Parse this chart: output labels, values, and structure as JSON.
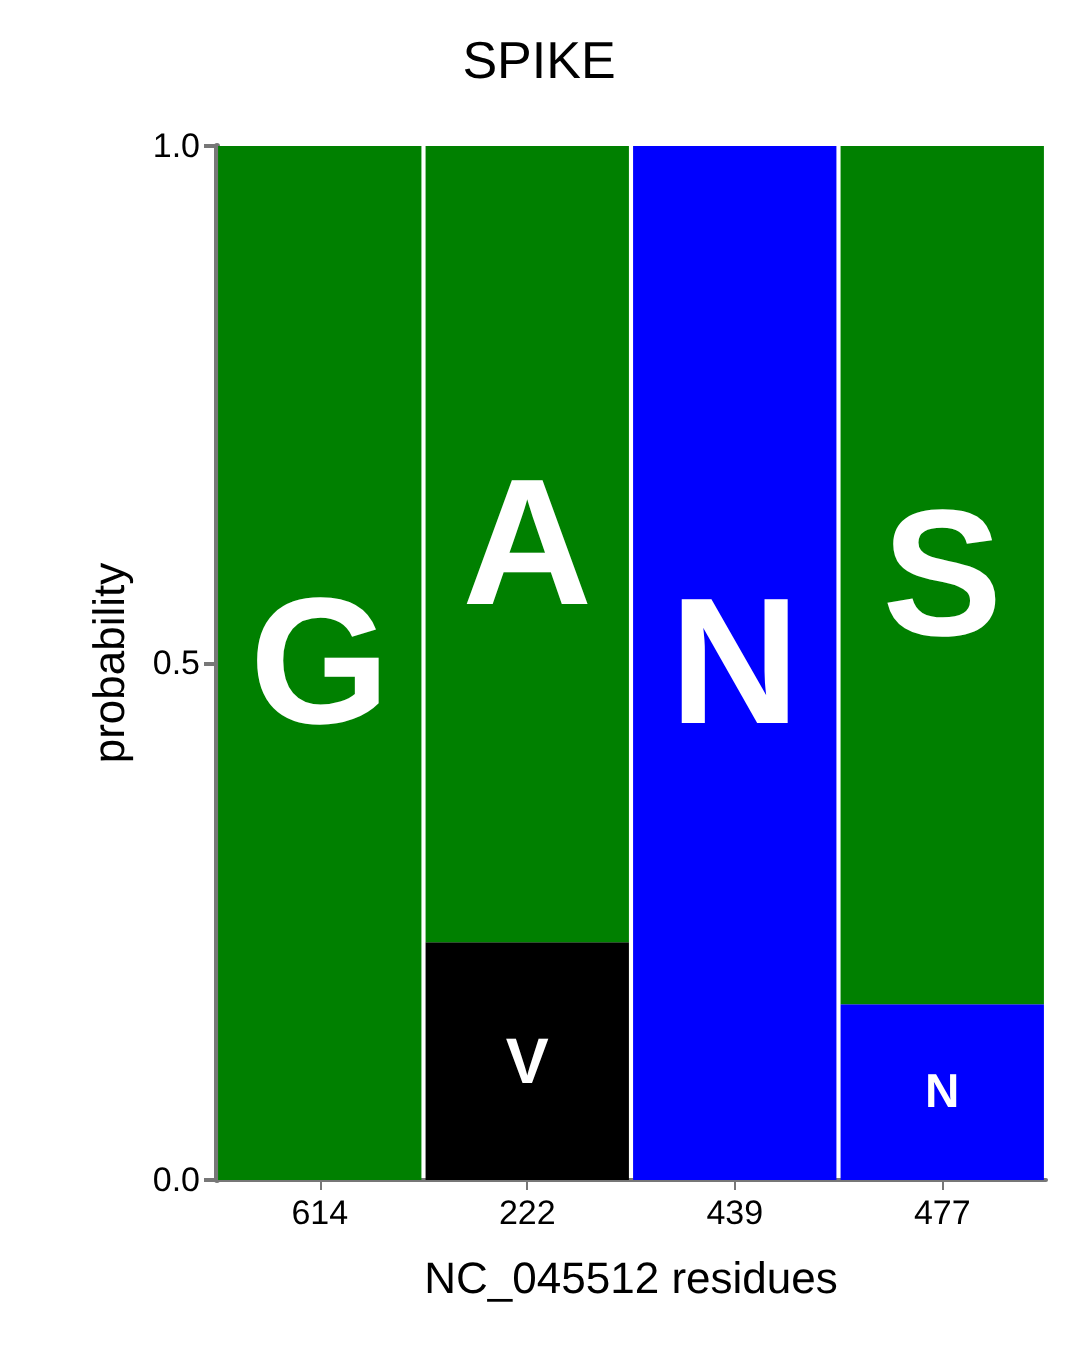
{
  "chart_data": {
    "type": "bar",
    "title": "SPIKE",
    "xlabel": "NC_045512 residues",
    "ylabel": "probability",
    "stacked": true,
    "categories": [
      "614",
      "222",
      "439",
      "477"
    ],
    "series": [
      {
        "name": "V",
        "color": "#000000",
        "values": [
          null,
          0.23,
          null,
          null
        ]
      },
      {
        "name": "N",
        "color": "#0000ff",
        "values": [
          null,
          null,
          1.0,
          0.17
        ]
      },
      {
        "name": "G",
        "color": "#008000",
        "values": [
          1.0,
          null,
          null,
          null
        ]
      },
      {
        "name": "A",
        "color": "#008000",
        "values": [
          null,
          0.77,
          null,
          null
        ]
      },
      {
        "name": "S",
        "color": "#008000",
        "values": [
          null,
          null,
          null,
          0.83
        ]
      }
    ],
    "ylim": [
      0,
      1
    ],
    "yticks": [
      {
        "value": 0,
        "label": "0.0"
      },
      {
        "value": 0.5,
        "label": "0.5"
      },
      {
        "value": 1,
        "label": "1.0"
      }
    ],
    "grid": false,
    "legend": false
  }
}
